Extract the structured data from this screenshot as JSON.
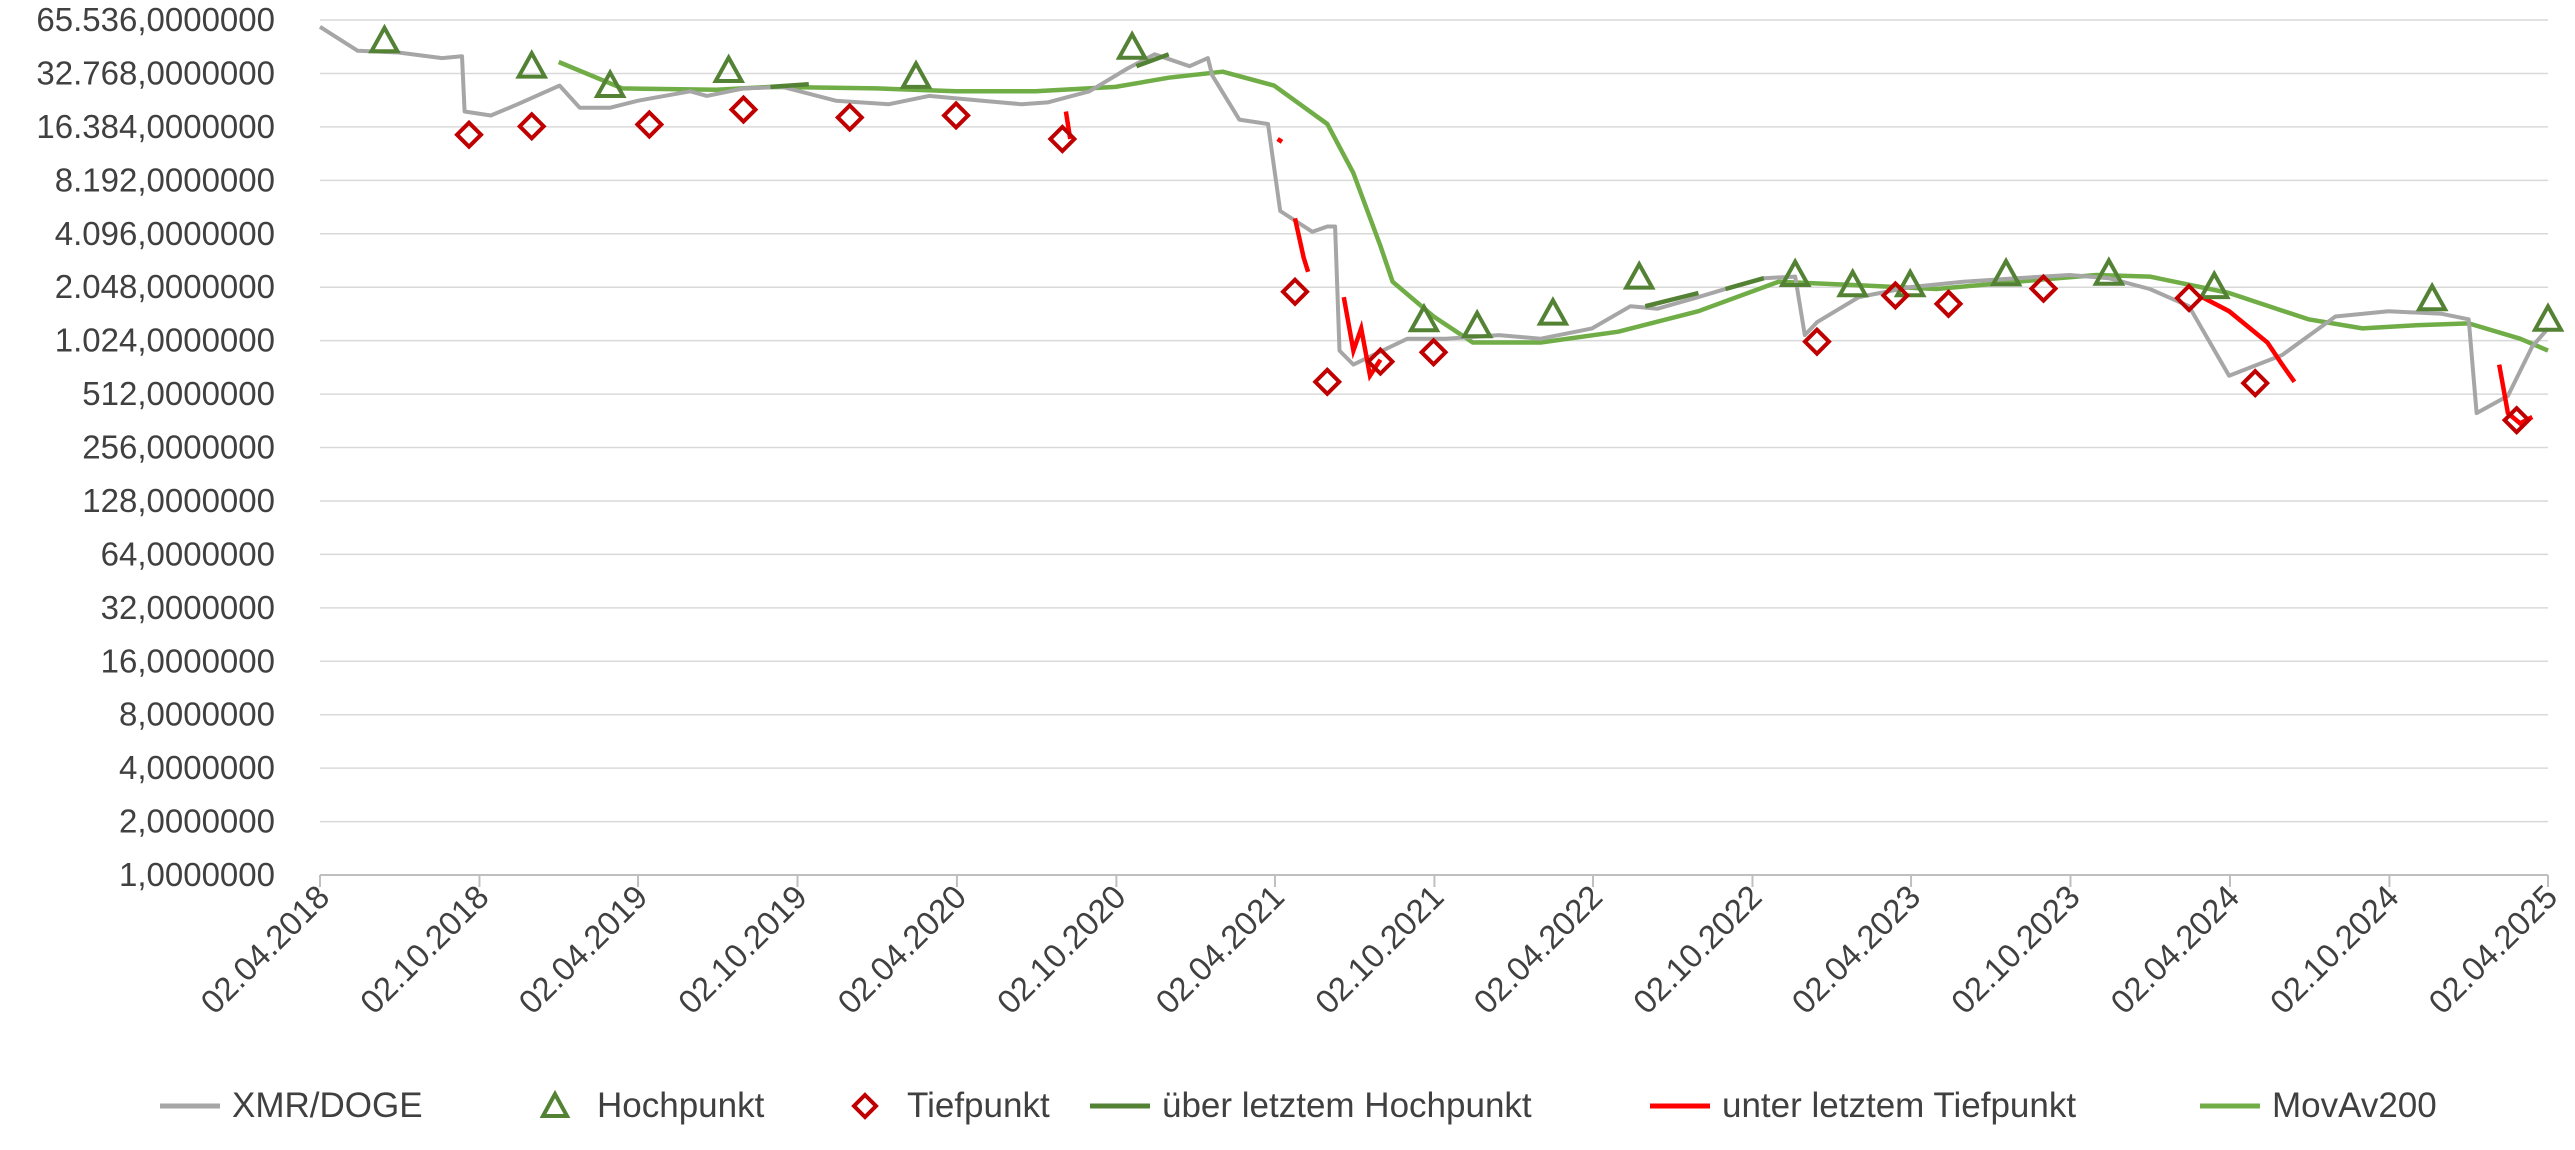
{
  "chart_data": {
    "type": "line",
    "title": "",
    "xlabel": "",
    "ylabel": "",
    "y_scale": "log2",
    "ylim": [
      1,
      65536
    ],
    "y_ticks": [
      "1,0000000",
      "2,0000000",
      "4,0000000",
      "8,0000000",
      "16,0000000",
      "32,0000000",
      "64,0000000",
      "128,0000000",
      "256,0000000",
      "512,0000000",
      "1.024,0000000",
      "2.048,0000000",
      "4.096,0000000",
      "8.192,0000000",
      "16.384,0000000",
      "32.768,0000000",
      "65.536,0000000"
    ],
    "y_tick_values": [
      1,
      2,
      4,
      8,
      16,
      32,
      64,
      128,
      256,
      512,
      1024,
      2048,
      4096,
      8192,
      16384,
      32768,
      65536
    ],
    "xlim": [
      "02.04.2018",
      "02.04.2025"
    ],
    "x_ticks": [
      "02.04.2018",
      "02.10.2018",
      "02.04.2019",
      "02.10.2019",
      "02.04.2020",
      "02.10.2020",
      "02.04.2021",
      "02.10.2021",
      "02.04.2022",
      "02.10.2022",
      "02.04.2023",
      "02.10.2023",
      "02.04.2024",
      "02.10.2024",
      "02.04.2025"
    ],
    "grid": true,
    "legend_position": "bottom",
    "colors": {
      "price": "#a6a6a6",
      "high": "#548235",
      "low": "#c00000",
      "above": "#548235",
      "below": "#ff0000",
      "movav": "#70ad47",
      "grid": "#d9d9d9",
      "axis": "#bfbfbf"
    },
    "series": [
      {
        "name": "XMR/DOGE",
        "points": [
          [
            "02.04.2018",
            60000
          ],
          [
            "15.05.2018",
            44000
          ],
          [
            "01.07.2018",
            43000
          ],
          [
            "20.08.2018",
            40000
          ],
          [
            "12.09.2018",
            41000
          ],
          [
            "15.09.2018",
            20000
          ],
          [
            "15.10.2018",
            19000
          ],
          [
            "15.11.2018",
            22000
          ],
          [
            "02.01.2019",
            28000
          ],
          [
            "25.01.2019",
            21000
          ],
          [
            "01.03.2019",
            21000
          ],
          [
            "02.04.2019",
            23000
          ],
          [
            "01.06.2019",
            26000
          ],
          [
            "20.06.2019",
            24500
          ],
          [
            "01.08.2019",
            27000
          ],
          [
            "15.09.2019",
            27500
          ],
          [
            "15.11.2019",
            23000
          ],
          [
            "15.01.2020",
            22000
          ],
          [
            "01.03.2020",
            24500
          ],
          [
            "01.05.2020",
            23000
          ],
          [
            "15.06.2020",
            22000
          ],
          [
            "15.07.2020",
            22500
          ],
          [
            "01.09.2020",
            26000
          ],
          [
            "15.10.2020",
            35000
          ],
          [
            "15.11.2020",
            42000
          ],
          [
            "25.12.2020",
            36000
          ],
          [
            "15.01.2021",
            40000
          ],
          [
            "20.01.2021",
            32000
          ],
          [
            "20.02.2021",
            18000
          ],
          [
            "25.03.2021",
            17000
          ],
          [
            "08.04.2021",
            5500
          ],
          [
            "15.05.2021",
            4200
          ],
          [
            "01.06.2021",
            4500
          ],
          [
            "10.06.2021",
            4500
          ],
          [
            "15.06.2021",
            900
          ],
          [
            "01.07.2021",
            750
          ],
          [
            "01.09.2021",
            1050
          ],
          [
            "15.10.2021",
            1050
          ],
          [
            "15.12.2021",
            1100
          ],
          [
            "01.02.2022",
            1050
          ],
          [
            "01.04.2022",
            1200
          ],
          [
            "15.05.2022",
            1600
          ],
          [
            "15.06.2022",
            1550
          ],
          [
            "01.08.2022",
            1800
          ],
          [
            "15.09.2022",
            2100
          ],
          [
            "15.10.2022",
            2300
          ],
          [
            "20.11.2022",
            2350
          ],
          [
            "01.12.2022",
            1100
          ],
          [
            "15.12.2022",
            1300
          ],
          [
            "01.02.2023",
            1800
          ],
          [
            "01.04.2023",
            2050
          ],
          [
            "01.06.2023",
            2200
          ],
          [
            "01.08.2023",
            2300
          ],
          [
            "01.10.2023",
            2400
          ],
          [
            "15.11.2023",
            2300
          ],
          [
            "01.01.2024",
            2000
          ],
          [
            "15.02.2024",
            1600
          ],
          [
            "01.04.2024",
            650
          ],
          [
            "01.06.2024",
            850
          ],
          [
            "01.08.2024",
            1400
          ],
          [
            "01.10.2024",
            1500
          ],
          [
            "01.12.2024",
            1450
          ],
          [
            "01.01.2025",
            1350
          ],
          [
            "10.01.2025",
            400
          ],
          [
            "15.02.2025",
            500
          ],
          [
            "15.03.2025",
            950
          ],
          [
            "02.04.2025",
            1200
          ]
        ]
      },
      {
        "name": "Hochpunkt",
        "points": [
          [
            "15.06.2018",
            50000
          ],
          [
            "01.12.2018",
            36000
          ],
          [
            "01.03.2019",
            28000
          ],
          [
            "15.07.2019",
            34000
          ],
          [
            "15.02.2020",
            31500
          ],
          [
            "20.10.2020",
            46000
          ],
          [
            "20.09.2021",
            1340
          ],
          [
            "20.11.2021",
            1240
          ],
          [
            "15.02.2022",
            1460
          ],
          [
            "25.05.2022",
            2330
          ],
          [
            "20.11.2022",
            2410
          ],
          [
            "25.01.2023",
            2110
          ],
          [
            "01.04.2023",
            2110
          ],
          [
            "20.07.2023",
            2430
          ],
          [
            "15.11.2023",
            2450
          ],
          [
            "15.03.2024",
            2060
          ],
          [
            "20.11.2024",
            1760
          ],
          [
            "02.04.2025",
            1350
          ]
        ]
      },
      {
        "name": "Tiefpunkt",
        "points": [
          [
            "20.09.2018",
            14800
          ],
          [
            "01.12.2018",
            16500
          ],
          [
            "15.04.2019",
            16900
          ],
          [
            "01.08.2019",
            20500
          ],
          [
            "01.12.2019",
            18500
          ],
          [
            "01.04.2020",
            19000
          ],
          [
            "01.08.2020",
            14000
          ],
          [
            "25.04.2021",
            1930
          ],
          [
            "01.06.2021",
            600
          ],
          [
            "01.08.2021",
            780
          ],
          [
            "01.10.2021",
            880
          ],
          [
            "15.12.2022",
            1010
          ],
          [
            "15.03.2023",
            1840
          ],
          [
            "15.05.2023",
            1650
          ],
          [
            "01.09.2023",
            2010
          ],
          [
            "15.02.2024",
            1780
          ],
          [
            "01.05.2024",
            590
          ],
          [
            "25.02.2025",
            365
          ]
        ]
      },
      {
        "name": "über letztem Hochpunkt",
        "segments": [
          [
            [
              "01.09.2019",
              27500
            ],
            [
              "15.10.2019",
              28500
            ]
          ],
          [
            [
              "25.10.2020",
              36000
            ],
            [
              "01.12.2020",
              42000
            ]
          ],
          [
            [
              "01.06.2022",
              1600
            ],
            [
              "01.08.2022",
              1900
            ]
          ],
          [
            [
              "01.09.2022",
              2000
            ],
            [
              "15.10.2022",
              2300
            ]
          ]
        ]
      },
      {
        "name": "unter letztem Tiefpunkt",
        "segments": [
          [
            [
              "05.08.2020",
              20000
            ],
            [
              "10.08.2020",
              14000
            ]
          ],
          [
            [
              "05.04.2021",
              14000
            ],
            [
              "10.04.2021",
              13500
            ]
          ],
          [
            [
              "25.04.2021",
              5000
            ],
            [
              "05.05.2021",
              3000
            ],
            [
              "10.05.2021",
              2500
            ]
          ],
          [
            [
              "20.06.2021",
              1800
            ],
            [
              "01.07.2021",
              900
            ],
            [
              "10.07.2021",
              1200
            ],
            [
              "20.07.2021",
              650
            ],
            [
              "01.08.2021",
              800
            ]
          ],
          [
            [
              "01.03.2024",
              1800
            ],
            [
              "01.04.2024",
              1500
            ],
            [
              "15.05.2024",
              1000
            ],
            [
              "01.06.2024",
              750
            ],
            [
              "15.06.2024",
              600
            ]
          ],
          [
            [
              "05.02.2025",
              750
            ],
            [
              "15.02.2025",
              400
            ],
            [
              "01.03.2025",
              350
            ],
            [
              "15.03.2025",
              380
            ]
          ]
        ]
      },
      {
        "name": "MovAv200",
        "points": [
          [
            "01.01.2019",
            38000
          ],
          [
            "15.03.2019",
            27000
          ],
          [
            "01.07.2019",
            26500
          ],
          [
            "01.09.2019",
            27500
          ],
          [
            "01.01.2020",
            27000
          ],
          [
            "01.04.2020",
            26000
          ],
          [
            "01.07.2020",
            26000
          ],
          [
            "01.10.2020",
            27500
          ],
          [
            "01.12.2020",
            31000
          ],
          [
            "01.02.2021",
            33500
          ],
          [
            "01.04.2021",
            28000
          ],
          [
            "01.06.2021",
            17000
          ],
          [
            "01.07.2021",
            9000
          ],
          [
            "01.08.2021",
            3500
          ],
          [
            "15.08.2021",
            2200
          ],
          [
            "01.10.2021",
            1400
          ],
          [
            "15.11.2021",
            1000
          ],
          [
            "01.02.2022",
            1000
          ],
          [
            "01.05.2022",
            1150
          ],
          [
            "01.08.2022",
            1500
          ],
          [
            "01.11.2022",
            2200
          ],
          [
            "01.02.2023",
            2100
          ],
          [
            "01.05.2023",
            2000
          ],
          [
            "01.08.2023",
            2200
          ],
          [
            "01.11.2023",
            2400
          ],
          [
            "01.01.2024",
            2350
          ],
          [
            "01.04.2024",
            1900
          ],
          [
            "01.07.2024",
            1350
          ],
          [
            "01.09.2024",
            1200
          ],
          [
            "01.11.2024",
            1250
          ],
          [
            "01.01.2025",
            1280
          ],
          [
            "01.03.2025",
            1050
          ],
          [
            "02.04.2025",
            900
          ]
        ]
      }
    ],
    "legend": [
      {
        "label": "XMR/DOGE",
        "kind": "line",
        "color": "#a6a6a6"
      },
      {
        "label": "Hochpunkt",
        "kind": "triangle",
        "color": "#548235"
      },
      {
        "label": "Tiefpunkt",
        "kind": "diamond",
        "color": "#c00000"
      },
      {
        "label": "über letztem Hochpunkt",
        "kind": "line",
        "color": "#548235"
      },
      {
        "label": "unter letztem Tiefpunkt",
        "kind": "line",
        "color": "#ff0000"
      },
      {
        "label": "MovAv200",
        "kind": "line",
        "color": "#70ad47"
      }
    ]
  }
}
